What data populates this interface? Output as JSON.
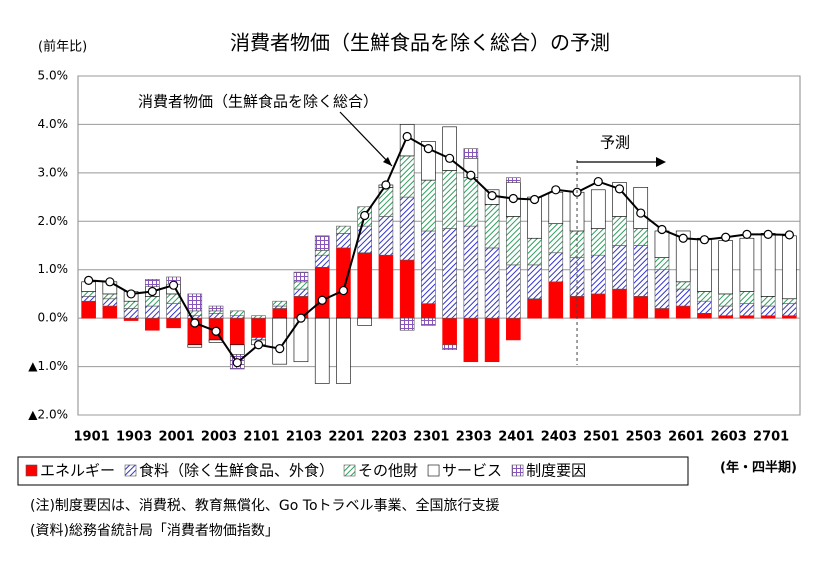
{
  "chart_data": {
    "type": "bar",
    "title": "消費者物価（生鮮食品を除く総合）の予測",
    "y_axis_label": "(前年比)",
    "x_axis_label": "(年・四半期)",
    "forecast_label": "予測",
    "notes": [
      "(注)制度要因は、消費税、教育無償化、Go Toトラベル事業、全国旅行支援",
      "(資料)総務省統計局「消費者物価指数」"
    ],
    "categories": [
      "1901",
      null,
      "1903",
      null,
      "2001",
      null,
      "2003",
      null,
      "2101",
      null,
      "2103",
      null,
      "2201",
      null,
      "2203",
      null,
      "2301",
      null,
      "2303",
      null,
      "2401",
      null,
      "2403",
      null,
      "2501",
      null,
      "2503",
      null,
      "2601",
      null,
      "2603",
      null,
      "2701",
      null
    ],
    "ylim": [
      -2.0,
      5.0
    ],
    "yticks": [
      {
        "value": -2.0,
        "label": "▲2.0%"
      },
      {
        "value": -1.0,
        "label": "▲1.0%"
      },
      {
        "value": 0.0,
        "label": "0.0%"
      },
      {
        "value": 1.0,
        "label": "1.0%"
      },
      {
        "value": 2.0,
        "label": "2.0%"
      },
      {
        "value": 3.0,
        "label": "3.0%"
      },
      {
        "value": 4.0,
        "label": "4.0%"
      },
      {
        "value": 5.0,
        "label": "5.0%"
      }
    ],
    "grid": true,
    "series": [
      {
        "name": "エネルギー",
        "color": "#ff0000",
        "pattern": "solid",
        "values": [
          0.35,
          0.25,
          -0.05,
          -0.25,
          -0.2,
          -0.55,
          -0.45,
          -0.55,
          -0.4,
          0.2,
          0.45,
          1.05,
          1.45,
          1.35,
          1.3,
          1.2,
          0.3,
          -0.55,
          -0.9,
          -0.9,
          -0.45,
          0.4,
          0.75,
          0.45,
          0.5,
          0.6,
          0.45,
          0.2,
          0.25,
          0.1,
          0.05,
          0.05,
          0.05,
          0.05
        ]
      },
      {
        "name": "食料（除く生鮮食品、外食）",
        "color": "#3333cc",
        "pattern": "hatch",
        "values": [
          0.1,
          0.15,
          0.2,
          0.25,
          0.3,
          0.05,
          0.1,
          0.05,
          -0.05,
          0.05,
          0.15,
          0.25,
          0.3,
          0.55,
          0.8,
          1.3,
          1.5,
          1.85,
          1.9,
          1.45,
          1.1,
          0.7,
          0.6,
          0.8,
          0.8,
          0.9,
          1.05,
          0.8,
          0.35,
          0.25,
          0.2,
          0.25,
          0.2,
          0.25
        ]
      },
      {
        "name": "その他財",
        "color": "#2e9e5e",
        "pattern": "hatch",
        "values": [
          0.1,
          0.1,
          0.15,
          0.2,
          0.2,
          0.1,
          0.05,
          0.1,
          0.05,
          0.1,
          0.15,
          0.1,
          0.15,
          0.4,
          0.6,
          0.85,
          1.05,
          1.2,
          1.0,
          0.9,
          1.0,
          0.55,
          0.6,
          0.55,
          0.55,
          0.6,
          0.35,
          0.25,
          0.15,
          0.2,
          0.25,
          0.25,
          0.2,
          0.1
        ]
      },
      {
        "name": "サービス",
        "color": "#ffffff",
        "pattern": "solid",
        "values": [
          0.2,
          0.25,
          0.2,
          0.2,
          0.2,
          -0.05,
          -0.05,
          -0.2,
          -0.1,
          -0.95,
          -0.9,
          -1.35,
          -1.35,
          -0.15,
          0.05,
          0.65,
          0.8,
          0.9,
          0.4,
          0.3,
          0.7,
          0.85,
          0.65,
          0.8,
          0.8,
          0.7,
          0.85,
          0.55,
          1.05,
          1.1,
          1.1,
          1.1,
          1.3,
          1.3
        ]
      },
      {
        "name": "制度要因",
        "color": "#8855bb",
        "pattern": "grid",
        "values": [
          0,
          0,
          0,
          0.15,
          0.15,
          0.35,
          0.1,
          -0.3,
          0,
          0,
          0.2,
          0.3,
          0,
          0,
          0,
          -0.25,
          -0.15,
          -0.1,
          0.2,
          0,
          0.1,
          0,
          0,
          0,
          0,
          0,
          0,
          0,
          0,
          0,
          0,
          0,
          0,
          0
        ]
      },
      {
        "name": "消費者物価（生鮮食品を除く総合）",
        "type": "line",
        "color": "#000000",
        "values": [
          0.78,
          0.75,
          0.5,
          0.55,
          0.68,
          -0.1,
          -0.27,
          -0.92,
          -0.55,
          -0.63,
          0.0,
          0.37,
          0.57,
          2.12,
          2.75,
          3.75,
          3.5,
          3.3,
          2.95,
          2.53,
          2.47,
          2.45,
          2.65,
          2.6,
          2.82,
          2.67,
          2.17,
          1.83,
          1.65,
          1.62,
          1.67,
          1.73,
          1.73,
          1.72
        ]
      }
    ]
  }
}
